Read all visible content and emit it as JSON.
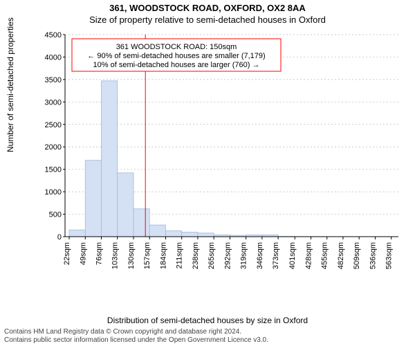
{
  "title_line1": "361, WOODSTOCK ROAD, OXFORD, OX2 8AA",
  "title_line2": "Size of property relative to semi-detached houses in Oxford",
  "ylabel": "Number of semi-detached properties",
  "xlabel": "Distribution of semi-detached houses by size in Oxford",
  "footer_line1": "Contains HM Land Registry data © Crown copyright and database right 2024.",
  "footer_line2": "Contains public sector information licensed under the Open Government Licence v3.0.",
  "chart": {
    "type": "histogram",
    "x_tick_labels": [
      "22sqm",
      "49sqm",
      "76sqm",
      "103sqm",
      "130sqm",
      "157sqm",
      "184sqm",
      "211sqm",
      "238sqm",
      "265sqm",
      "292sqm",
      "319sqm",
      "346sqm",
      "373sqm",
      "401sqm",
      "428sqm",
      "455sqm",
      "482sqm",
      "509sqm",
      "536sqm",
      "563sqm"
    ],
    "x_tick_positions": [
      22,
      49,
      76,
      103,
      130,
      157,
      184,
      211,
      238,
      265,
      292,
      319,
      346,
      373,
      401,
      428,
      455,
      482,
      509,
      536,
      563
    ],
    "bars": [
      {
        "x_start": 22,
        "x_end": 49,
        "value": 150
      },
      {
        "x_start": 49,
        "x_end": 76,
        "value": 1700
      },
      {
        "x_start": 76,
        "x_end": 103,
        "value": 3470
      },
      {
        "x_start": 103,
        "x_end": 130,
        "value": 1420
      },
      {
        "x_start": 130,
        "x_end": 157,
        "value": 620
      },
      {
        "x_start": 157,
        "x_end": 184,
        "value": 260
      },
      {
        "x_start": 184,
        "x_end": 211,
        "value": 130
      },
      {
        "x_start": 211,
        "x_end": 238,
        "value": 100
      },
      {
        "x_start": 238,
        "x_end": 265,
        "value": 80
      },
      {
        "x_start": 265,
        "x_end": 292,
        "value": 40
      },
      {
        "x_start": 292,
        "x_end": 319,
        "value": 30
      },
      {
        "x_start": 319,
        "x_end": 346,
        "value": 40
      },
      {
        "x_start": 346,
        "x_end": 373,
        "value": 40
      },
      {
        "x_start": 373,
        "x_end": 401,
        "value": 5
      },
      {
        "x_start": 401,
        "x_end": 428,
        "value": 3
      },
      {
        "x_start": 428,
        "x_end": 455,
        "value": 3
      },
      {
        "x_start": 455,
        "x_end": 482,
        "value": 2
      },
      {
        "x_start": 482,
        "x_end": 509,
        "value": 2
      },
      {
        "x_start": 509,
        "x_end": 536,
        "value": 2
      },
      {
        "x_start": 536,
        "x_end": 563,
        "value": 2
      }
    ],
    "ylim": [
      0,
      4500
    ],
    "ytick_step": 500,
    "xlim": [
      15,
      575
    ],
    "bar_fill": "#d4e0f4",
    "bar_stroke": "#9fb8dd",
    "grid_color": "#b8b8b8",
    "grid_dash": "2,3",
    "axis_color": "#000000",
    "background": "#ffffff",
    "font_size_ticks": 11,
    "vline": {
      "x": 150,
      "color": "#ff0000",
      "width": 1
    },
    "legend": {
      "border_color": "#ff0000",
      "background": "#ffffff",
      "lines": [
        "361 WOODSTOCK ROAD: 150sqm",
        "← 90% of semi-detached houses are smaller (7,179)",
        "10% of semi-detached houses are larger (760) →"
      ],
      "font_size": 11
    }
  }
}
